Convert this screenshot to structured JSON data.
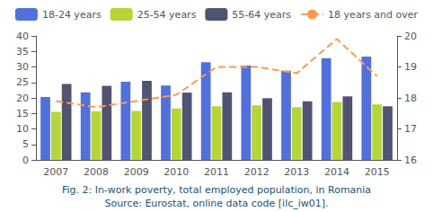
{
  "chart_data": {
    "type": "bar",
    "categories": [
      "2007",
      "2008",
      "2009",
      "2010",
      "2011",
      "2012",
      "2013",
      "2014",
      "2015"
    ],
    "series": [
      {
        "name": "18-24 years",
        "values": [
          20.3,
          21.8,
          25.2,
          24.0,
          31.5,
          30.4,
          28.8,
          32.8,
          33.3
        ]
      },
      {
        "name": "25-54 years",
        "values": [
          15.5,
          15.7,
          15.8,
          16.6,
          17.3,
          17.6,
          17.0,
          18.7,
          17.9
        ]
      },
      {
        "name": "55-64 years",
        "values": [
          24.5,
          23.9,
          25.5,
          21.7,
          21.8,
          19.9,
          18.9,
          20.5,
          17.3
        ]
      },
      {
        "name": "18 years and over",
        "type": "line",
        "axis": "y2",
        "line_style": "dashed",
        "values": [
          17.9,
          17.7,
          17.9,
          18.1,
          19.0,
          19.0,
          18.8,
          19.9,
          18.7
        ]
      }
    ],
    "ylim": [
      0,
      40
    ],
    "yticks": [
      0,
      5,
      10,
      15,
      20,
      25,
      30,
      35,
      40
    ],
    "y2lim": [
      16,
      20
    ],
    "y2ticks": [
      16,
      17,
      18,
      19,
      20
    ],
    "grid": false,
    "legend": "top",
    "annotations": [
      "Fig. 2: In-work poverty, total employed population, in Romania",
      "Source: Eurostat, online data code [ilc_iw01]."
    ]
  }
}
